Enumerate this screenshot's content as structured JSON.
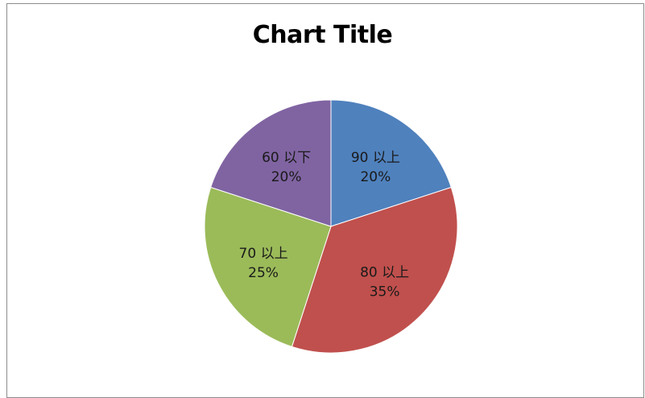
{
  "chart_data": {
    "type": "pie",
    "title": "Chart Title",
    "slices": [
      {
        "label": "90 以上",
        "value": 20,
        "percent_label": "20%",
        "color": "#4f81bd"
      },
      {
        "label": "80 以上",
        "value": 35,
        "percent_label": "35%",
        "color": "#c0504d"
      },
      {
        "label": "70 以上",
        "value": 25,
        "percent_label": "25%",
        "color": "#9bbb59"
      },
      {
        "label": "60 以下",
        "value": 20,
        "percent_label": "20%",
        "color": "#8064a2"
      }
    ],
    "start_angle": "12 o'clock",
    "direction": "clockwise",
    "legend": "none"
  }
}
